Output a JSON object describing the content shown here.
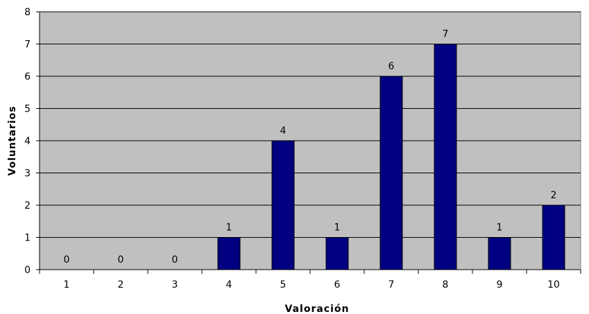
{
  "chart_data": {
    "type": "bar",
    "categories": [
      "1",
      "2",
      "3",
      "4",
      "5",
      "6",
      "7",
      "8",
      "9",
      "10"
    ],
    "values": [
      0,
      0,
      0,
      1,
      4,
      1,
      6,
      7,
      1,
      2
    ],
    "xlabel": "Valoración",
    "ylabel": "Voluntarios",
    "ylim": [
      0,
      8
    ],
    "yticks": [
      "0",
      "1",
      "2",
      "3",
      "4",
      "5",
      "6",
      "7",
      "8"
    ],
    "grid": true,
    "legend": "none",
    "colors": {
      "bar": "#000080",
      "plot_background": "#c0c0c0",
      "gridline": "#000000"
    }
  }
}
